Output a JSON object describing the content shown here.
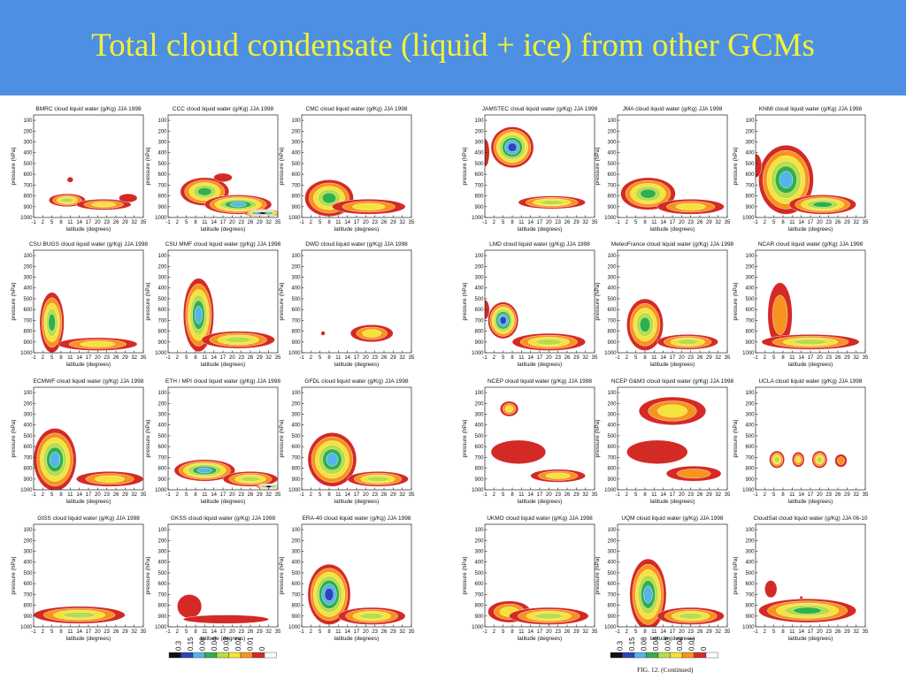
{
  "slide": {
    "title": "Total cloud condensate (liquid + ice) from other GCMs"
  },
  "chart_data": {
    "type": "heatmap",
    "xlabel": "latitude (degrees)",
    "ylabel": "pressure (hPa)",
    "x_ticks": [
      "-1",
      "2",
      "5",
      "8",
      "11",
      "14",
      "17",
      "20",
      "23",
      "26",
      "29",
      "32",
      "35"
    ],
    "y_ticks": [
      "100",
      "200",
      "300",
      "400",
      "500",
      "600",
      "700",
      "800",
      "900",
      "1000"
    ],
    "xlim": [
      -1,
      35
    ],
    "ylim": [
      1000,
      50
    ],
    "colorbar_levels": [
      "0.3",
      "0.15",
      "0.08",
      "0.04",
      "0.03",
      "0.02",
      "0.01",
      "0"
    ],
    "colorbar_colors": [
      "#101010",
      "#2c45b8",
      "#56b4ea",
      "#2fb04a",
      "#b9dc4a",
      "#f5e23a",
      "#f7931e",
      "#d42a26",
      "#ffffff"
    ],
    "figure_caption": "FIG. 12. (Continued)",
    "panels": [
      {
        "title": "BMRC cloud liquid water (g/Kg) JJA 1998",
        "blobs": [
          {
            "x": 10,
            "p": 840,
            "rx": 6,
            "rp": 60,
            "lev": 4
          },
          {
            "x": 22,
            "p": 880,
            "rx": 9,
            "rp": 50,
            "lev": 3
          },
          {
            "x": 30,
            "p": 820,
            "rx": 3,
            "rp": 40,
            "lev": 1
          },
          {
            "x": 11,
            "p": 650,
            "rx": 1,
            "rp": 25,
            "lev": 1
          }
        ]
      },
      {
        "title": "CCC cloud liquid water (g/Kg) JJA 1998",
        "blobs": [
          {
            "x": 11,
            "p": 760,
            "rx": 8,
            "rp": 130,
            "lev": 5
          },
          {
            "x": 22,
            "p": 880,
            "rx": 11,
            "rp": 90,
            "lev": 6
          },
          {
            "x": 30,
            "p": 960,
            "rx": 6,
            "rp": 35,
            "lev": 8
          },
          {
            "x": 17,
            "p": 630,
            "rx": 3,
            "rp": 40,
            "lev": 1
          }
        ]
      },
      {
        "title": "CMC cloud liquid water (g/Kg) JJA 1998",
        "blobs": [
          {
            "x": 8,
            "p": 820,
            "rx": 8,
            "rp": 170,
            "lev": 5
          },
          {
            "x": 21,
            "p": 900,
            "rx": 12,
            "rp": 70,
            "lev": 3
          }
        ]
      },
      {
        "title": "JAMSTEC cloud liquid water (g/Kg) JJA 1998",
        "blobs": [
          {
            "x": 8,
            "p": 350,
            "rx": 7,
            "rp": 190,
            "lev": 7
          },
          {
            "x": -1,
            "p": 400,
            "rx": 1.5,
            "rp": 130,
            "lev": 1
          },
          {
            "x": 21,
            "p": 860,
            "rx": 11,
            "rp": 60,
            "lev": 4
          }
        ]
      },
      {
        "title": "JMA cloud liquid water (g/Kg) JJA 1998",
        "blobs": [
          {
            "x": 9,
            "p": 780,
            "rx": 9,
            "rp": 150,
            "lev": 5
          },
          {
            "x": 23,
            "p": 900,
            "rx": 11,
            "rp": 70,
            "lev": 3
          }
        ]
      },
      {
        "title": "KNMI cloud liquid water (g/Kg) JJA 1998",
        "blobs": [
          {
            "x": 9,
            "p": 650,
            "rx": 9,
            "rp": 320,
            "lev": 6
          },
          {
            "x": -1,
            "p": 520,
            "rx": 2,
            "rp": 110,
            "lev": 1
          },
          {
            "x": 21,
            "p": 880,
            "rx": 11,
            "rp": 90,
            "lev": 5
          }
        ]
      },
      {
        "title": "CSU BUGS cloud liquid water (g/Kg) JJA 1998",
        "blobs": [
          {
            "x": 5,
            "p": 720,
            "rx": 4,
            "rp": 280,
            "lev": 5
          },
          {
            "x": 20,
            "p": 920,
            "rx": 13,
            "rp": 60,
            "lev": 3
          }
        ]
      },
      {
        "title": "CSU MMF cloud liquid water (g/Kg) JJA 1998",
        "blobs": [
          {
            "x": 9,
            "p": 650,
            "rx": 5,
            "rp": 340,
            "lev": 6
          },
          {
            "x": 22,
            "p": 880,
            "rx": 12,
            "rp": 80,
            "lev": 4
          }
        ]
      },
      {
        "title": "DWD cloud liquid water (g/Kg) JJA 1998",
        "blobs": [
          {
            "x": 22,
            "p": 820,
            "rx": 7,
            "rp": 80,
            "lev": 3
          },
          {
            "x": 6,
            "p": 820,
            "rx": 0.7,
            "rp": 20,
            "lev": 1
          }
        ]
      },
      {
        "title": "LMD cloud liquid water (g/Kg) JJA 1998",
        "blobs": [
          {
            "x": 5,
            "p": 700,
            "rx": 5,
            "rp": 170,
            "lev": 7
          },
          {
            "x": -1,
            "p": 600,
            "rx": 1.5,
            "rp": 90,
            "lev": 1
          },
          {
            "x": 20,
            "p": 900,
            "rx": 12,
            "rp": 80,
            "lev": 4
          }
        ]
      },
      {
        "title": "MeteoFrance cloud liquid water (g/Kg) JJA 1998",
        "blobs": [
          {
            "x": 8,
            "p": 740,
            "rx": 6,
            "rp": 240,
            "lev": 5
          },
          {
            "x": 22,
            "p": 900,
            "rx": 10,
            "rp": 70,
            "lev": 4
          }
        ]
      },
      {
        "title": "NCAR cloud liquid water (g/Kg) JJA 1998",
        "blobs": [
          {
            "x": 7,
            "p": 650,
            "rx": 4,
            "rp": 300,
            "lev": 2
          },
          {
            "x": 17,
            "p": 900,
            "rx": 16,
            "rp": 70,
            "lev": 4
          }
        ]
      },
      {
        "title": "ECMWF cloud liquid water (g/Kg) JJA 1998",
        "blobs": [
          {
            "x": 6,
            "p": 720,
            "rx": 7,
            "rp": 290,
            "lev": 6
          },
          {
            "x": 24,
            "p": 900,
            "rx": 11,
            "rp": 70,
            "lev": 3
          }
        ]
      },
      {
        "title": "ETH / MPI cloud liquid water (g/Kg) JJA 1998",
        "blobs": [
          {
            "x": 11,
            "p": 820,
            "rx": 10,
            "rp": 100,
            "lev": 6
          },
          {
            "x": 26,
            "p": 900,
            "rx": 9,
            "rp": 70,
            "lev": 4
          },
          {
            "x": 32,
            "p": 970,
            "rx": 4,
            "rp": 25,
            "lev": 8
          }
        ]
      },
      {
        "title": "GFDL cloud liquid water (g/Kg) JJA 1998",
        "blobs": [
          {
            "x": 9,
            "p": 720,
            "rx": 8,
            "rp": 250,
            "lev": 6
          },
          {
            "x": 24,
            "p": 900,
            "rx": 10,
            "rp": 70,
            "lev": 4
          }
        ]
      },
      {
        "title": "NCEP cloud liquid water (g/Kg) JJA 1998",
        "blobs": [
          {
            "x": 7,
            "p": 250,
            "rx": 3,
            "rp": 70,
            "lev": 3
          },
          {
            "x": 10,
            "p": 650,
            "rx": 9,
            "rp": 110,
            "lev": 1
          },
          {
            "x": 23,
            "p": 870,
            "rx": 9,
            "rp": 60,
            "lev": 3
          }
        ]
      },
      {
        "title": "NCEP G&M3 cloud liquid water (g/Kg) JJA 1998",
        "blobs": [
          {
            "x": 17,
            "p": 270,
            "rx": 11,
            "rp": 130,
            "lev": 3
          },
          {
            "x": 12,
            "p": 650,
            "rx": 10,
            "rp": 110,
            "lev": 1
          },
          {
            "x": 24,
            "p": 850,
            "rx": 9,
            "rp": 70,
            "lev": 2
          }
        ]
      },
      {
        "title": "UCLA cloud liquid water (g/Kg) JJA 1998",
        "blobs": [
          {
            "x": 6,
            "p": 720,
            "rx": 2.5,
            "rp": 80,
            "lev": 4
          },
          {
            "x": 13,
            "p": 720,
            "rx": 2,
            "rp": 70,
            "lev": 3
          },
          {
            "x": 20,
            "p": 720,
            "rx": 2.5,
            "rp": 80,
            "lev": 4
          },
          {
            "x": 27,
            "p": 730,
            "rx": 2,
            "rp": 60,
            "lev": 2
          }
        ]
      },
      {
        "title": "GISS cloud liquid water (g/Kg) JJA 1998",
        "blobs": [
          {
            "x": 14,
            "p": 890,
            "rx": 15,
            "rp": 80,
            "lev": 4
          }
        ]
      },
      {
        "title": "GKSS cloud liquid water (g/Kg) JJA 1998",
        "blobs": [
          {
            "x": 6,
            "p": 810,
            "rx": 4,
            "rp": 110,
            "lev": 1
          },
          {
            "x": 18,
            "p": 930,
            "rx": 14,
            "rp": 40,
            "lev": 1
          }
        ]
      },
      {
        "title": "ERA-40 cloud liquid water (g/Kg) JJA 1998",
        "blobs": [
          {
            "x": 8,
            "p": 700,
            "rx": 7,
            "rp": 280,
            "lev": 7
          },
          {
            "x": 22,
            "p": 900,
            "rx": 11,
            "rp": 80,
            "lev": 4
          }
        ]
      },
      {
        "title": "UKMO cloud liquid water (g/Kg) JJA 1998",
        "blobs": [
          {
            "x": 7,
            "p": 860,
            "rx": 7,
            "rp": 100,
            "lev": 3
          },
          {
            "x": 20,
            "p": 900,
            "rx": 13,
            "rp": 80,
            "lev": 4
          }
        ]
      },
      {
        "title": "UQM cloud liquid water (g/Kg) JJA 1998",
        "blobs": [
          {
            "x": 9,
            "p": 700,
            "rx": 6,
            "rp": 330,
            "lev": 6
          },
          {
            "x": 23,
            "p": 900,
            "rx": 11,
            "rp": 80,
            "lev": 4
          }
        ]
      },
      {
        "title": "CloudSat cloud liquid water (g/Kg) JJA 06-10",
        "blobs": [
          {
            "x": 4,
            "p": 650,
            "rx": 2,
            "rp": 80,
            "lev": 1
          },
          {
            "x": 16,
            "p": 850,
            "rx": 16,
            "rp": 110,
            "lev": 5
          },
          {
            "x": 14,
            "p": 730,
            "rx": 0.5,
            "rp": 15,
            "lev": 1
          }
        ]
      }
    ]
  }
}
